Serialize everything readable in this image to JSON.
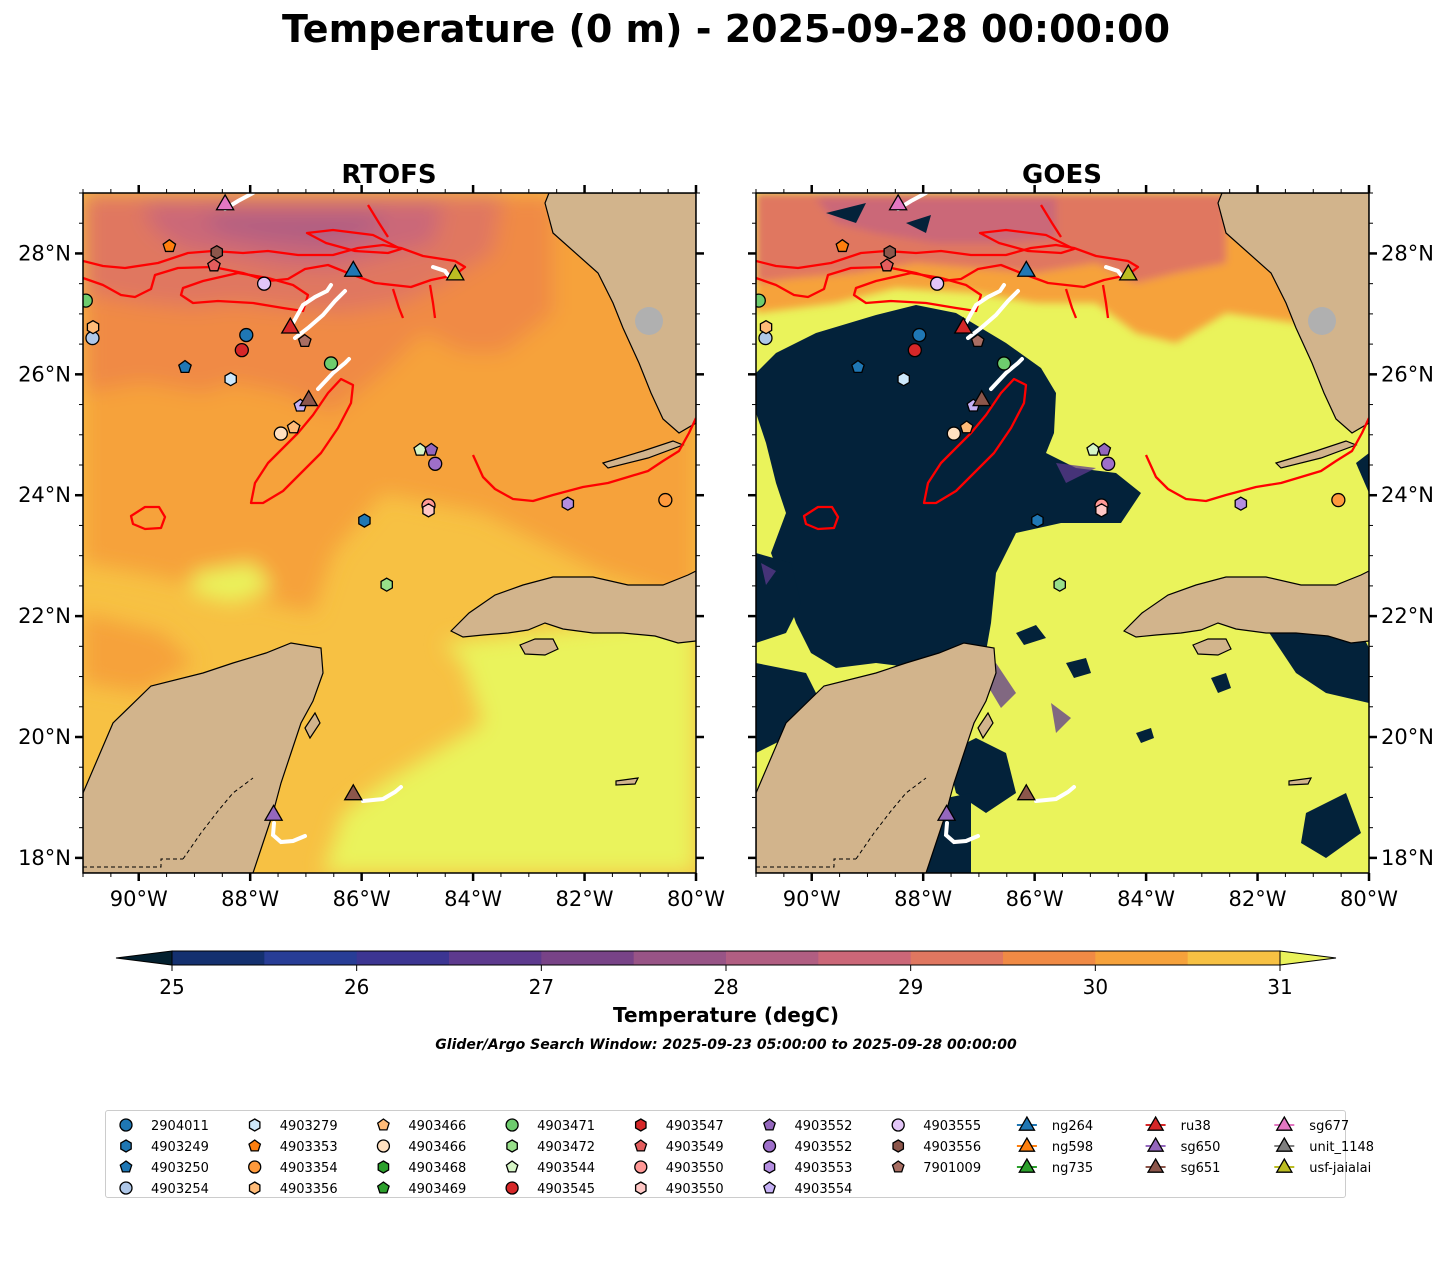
{
  "figure": {
    "title": "Temperature (0 m) - 2025-09-28 00:00:00",
    "search_window": "Glider/Argo Search Window: 2025-09-23 05:00:00 to 2025-09-28 00:00:00"
  },
  "panels": [
    {
      "id": "rtofs",
      "title": "RTOFS",
      "source": "model"
    },
    {
      "id": "goes",
      "title": "GOES",
      "source": "satellite"
    }
  ],
  "map_extent": {
    "lon_min": -91.0,
    "lon_max": -80.0,
    "lat_min": 17.75,
    "lat_max": 29.0
  },
  "axes": {
    "lon_ticks": [
      -90,
      -88,
      -86,
      -84,
      -82,
      -80
    ],
    "lon_labels": [
      "90°W",
      "88°W",
      "86°W",
      "84°W",
      "82°W",
      "80°W"
    ],
    "lat_ticks": [
      18,
      20,
      22,
      24,
      26,
      28
    ],
    "lat_labels": [
      "18°N",
      "20°N",
      "22°N",
      "24°N",
      "26°N",
      "28°N"
    ]
  },
  "colorbar": {
    "label": "Temperature (degC)",
    "min": 25,
    "max": 31,
    "step": 0.5,
    "ticks": [
      25,
      26,
      27,
      28,
      29,
      30,
      31
    ],
    "tick_labels": [
      "25",
      "26",
      "27",
      "28",
      "29",
      "30",
      "31"
    ],
    "colors": [
      "#03223a",
      "#14306f",
      "#283d96",
      "#3c3592",
      "#5d3a8e",
      "#784387",
      "#985486",
      "#b15e82",
      "#cb6778",
      "#e07760",
      "#f08a45",
      "#f6a23b",
      "#f7c143",
      "#eaf35b"
    ],
    "under_color": "#03202f",
    "over_color": "#eaf35b"
  },
  "colors": {
    "land": "#d2b48c",
    "lakes": "#a6c6e3",
    "contour": "#ff0000",
    "glider_track": "#ffffff",
    "cloud": "#03223a"
  },
  "legend": {
    "argo": [
      {
        "id": "2904011",
        "marker": "circle",
        "color": "#1f77b4"
      },
      {
        "id": "4903249",
        "marker": "hexagon",
        "color": "#1f77b4"
      },
      {
        "id": "4903250",
        "marker": "pentagon",
        "color": "#1f77b4"
      },
      {
        "id": "4903254",
        "marker": "circle",
        "color": "#aec7e8"
      },
      {
        "id": "4903279",
        "marker": "hexagon",
        "color": "#cde8fb"
      },
      {
        "id": "4903353",
        "marker": "pentagon",
        "color": "#ff7f0e"
      },
      {
        "id": "4903354",
        "marker": "circle",
        "color": "#ff9a3c"
      },
      {
        "id": "4903356",
        "marker": "hexagon",
        "color": "#ffbb78"
      },
      {
        "id": "4903466",
        "marker": "pentagon",
        "color": "#ffbb78"
      },
      {
        "id": "4903466",
        "marker": "circle",
        "color": "#ffe0c0"
      },
      {
        "id": "4903468",
        "marker": "hexagon",
        "color": "#2ca02c"
      },
      {
        "id": "4903469",
        "marker": "pentagon",
        "color": "#2ca02c"
      },
      {
        "id": "4903471",
        "marker": "circle",
        "color": "#6ecc6e"
      },
      {
        "id": "4903472",
        "marker": "hexagon",
        "color": "#98df8a"
      },
      {
        "id": "4903544",
        "marker": "pentagon",
        "color": "#d6f5c6"
      },
      {
        "id": "4903545",
        "marker": "circle",
        "color": "#d62728"
      },
      {
        "id": "4903547",
        "marker": "hexagon",
        "color": "#d62728"
      },
      {
        "id": "4903549",
        "marker": "pentagon",
        "color": "#e35d5d"
      },
      {
        "id": "4903550",
        "marker": "circle",
        "color": "#ff9896"
      },
      {
        "id": "4903550",
        "marker": "hexagon",
        "color": "#ffc7c5"
      },
      {
        "id": "4903552",
        "marker": "pentagon",
        "color": "#9467bd"
      },
      {
        "id": "4903552",
        "marker": "circle",
        "color": "#9e6fc9"
      },
      {
        "id": "4903553",
        "marker": "hexagon",
        "color": "#b48ee0"
      },
      {
        "id": "4903554",
        "marker": "pentagon",
        "color": "#c5b0f5"
      },
      {
        "id": "4903555",
        "marker": "circle",
        "color": "#e3c6f7"
      },
      {
        "id": "4903556",
        "marker": "hexagon",
        "color": "#8c564b"
      },
      {
        "id": "7901009",
        "marker": "pentagon",
        "color": "#a86e63"
      }
    ],
    "gliders": [
      {
        "id": "ng264",
        "color": "#1f77b4"
      },
      {
        "id": "ng598",
        "color": "#ff7f0e"
      },
      {
        "id": "ng735",
        "color": "#2ca02c"
      },
      {
        "id": "ru38",
        "color": "#d62728"
      },
      {
        "id": "sg650",
        "color": "#9467bd"
      },
      {
        "id": "sg651",
        "color": "#8c564b"
      },
      {
        "id": "sg677",
        "color": "#e377c2"
      },
      {
        "id": "unit_1148",
        "color": "#7f7f7f"
      },
      {
        "id": "usf-jaialai",
        "color": "#bcbd22"
      }
    ]
  },
  "observations": {
    "argo": [
      {
        "lon": -88.07,
        "lat": 26.65,
        "marker": "circle",
        "color": "#1f77b4"
      },
      {
        "lon": -85.95,
        "lat": 23.58,
        "marker": "hexagon",
        "color": "#1f77b4"
      },
      {
        "lon": -89.17,
        "lat": 26.12,
        "marker": "pentagon",
        "color": "#1f77b4"
      },
      {
        "lon": -90.83,
        "lat": 26.6,
        "marker": "circle",
        "color": "#aec7e8"
      },
      {
        "lon": -88.35,
        "lat": 25.92,
        "marker": "hexagon",
        "color": "#cde8fb"
      },
      {
        "lon": -89.45,
        "lat": 28.12,
        "marker": "pentagon",
        "color": "#ff7f0e"
      },
      {
        "lon": -80.55,
        "lat": 23.92,
        "marker": "circle",
        "color": "#ff9a3c"
      },
      {
        "lon": -90.82,
        "lat": 26.78,
        "marker": "hexagon",
        "color": "#ffbb78"
      },
      {
        "lon": -87.22,
        "lat": 25.12,
        "marker": "pentagon",
        "color": "#ffbb78"
      },
      {
        "lon": -87.45,
        "lat": 25.02,
        "marker": "circle",
        "color": "#ffe0c0"
      },
      {
        "lon": -90.95,
        "lat": 27.22,
        "marker": "circle",
        "color": "#6ecc6e"
      },
      {
        "lon": -86.55,
        "lat": 26.18,
        "marker": "circle",
        "color": "#6ecc6e"
      },
      {
        "lon": -85.55,
        "lat": 22.52,
        "marker": "hexagon",
        "color": "#98df8a"
      },
      {
        "lon": -84.95,
        "lat": 24.75,
        "marker": "pentagon",
        "color": "#d6f5c6"
      },
      {
        "lon": -88.15,
        "lat": 26.4,
        "marker": "circle",
        "color": "#d62728"
      },
      {
        "lon": -88.65,
        "lat": 27.8,
        "marker": "pentagon",
        "color": "#e35d5d"
      },
      {
        "lon": -84.8,
        "lat": 23.83,
        "marker": "circle",
        "color": "#ff9896"
      },
      {
        "lon": -84.8,
        "lat": 23.75,
        "marker": "hexagon",
        "color": "#ffc7c5"
      },
      {
        "lon": -84.75,
        "lat": 24.75,
        "marker": "pentagon",
        "color": "#9467bd"
      },
      {
        "lon": -84.68,
        "lat": 24.52,
        "marker": "circle",
        "color": "#9e6fc9"
      },
      {
        "lon": -82.3,
        "lat": 23.86,
        "marker": "hexagon",
        "color": "#b48ee0"
      },
      {
        "lon": -87.1,
        "lat": 25.48,
        "marker": "pentagon",
        "color": "#c5b0f5"
      },
      {
        "lon": -87.75,
        "lat": 27.5,
        "marker": "circle",
        "color": "#e3c6f7"
      },
      {
        "lon": -88.6,
        "lat": 28.02,
        "marker": "hexagon",
        "color": "#8c564b"
      },
      {
        "lon": -87.02,
        "lat": 26.55,
        "marker": "pentagon",
        "color": "#a86e63"
      }
    ],
    "gliders": [
      {
        "id": "ng264",
        "lon": -86.15,
        "lat": 27.72,
        "color": "#1f77b4"
      },
      {
        "id": "ru38",
        "lon": -87.28,
        "lat": 26.78,
        "color": "#d62728"
      },
      {
        "id": "sg650",
        "lon": -87.58,
        "lat": 18.72,
        "color": "#9467bd"
      },
      {
        "id": "sg651",
        "lon": -86.95,
        "lat": 25.58,
        "color": "#8c564b"
      },
      {
        "id": "sg651",
        "lon": -86.15,
        "lat": 19.06,
        "color": "#8c564b"
      },
      {
        "id": "sg677",
        "lon": -88.45,
        "lat": 28.82,
        "color": "#e377c2"
      },
      {
        "id": "usf-jaialai",
        "lon": -84.32,
        "lat": 27.66,
        "color": "#bcbd22"
      }
    ]
  }
}
